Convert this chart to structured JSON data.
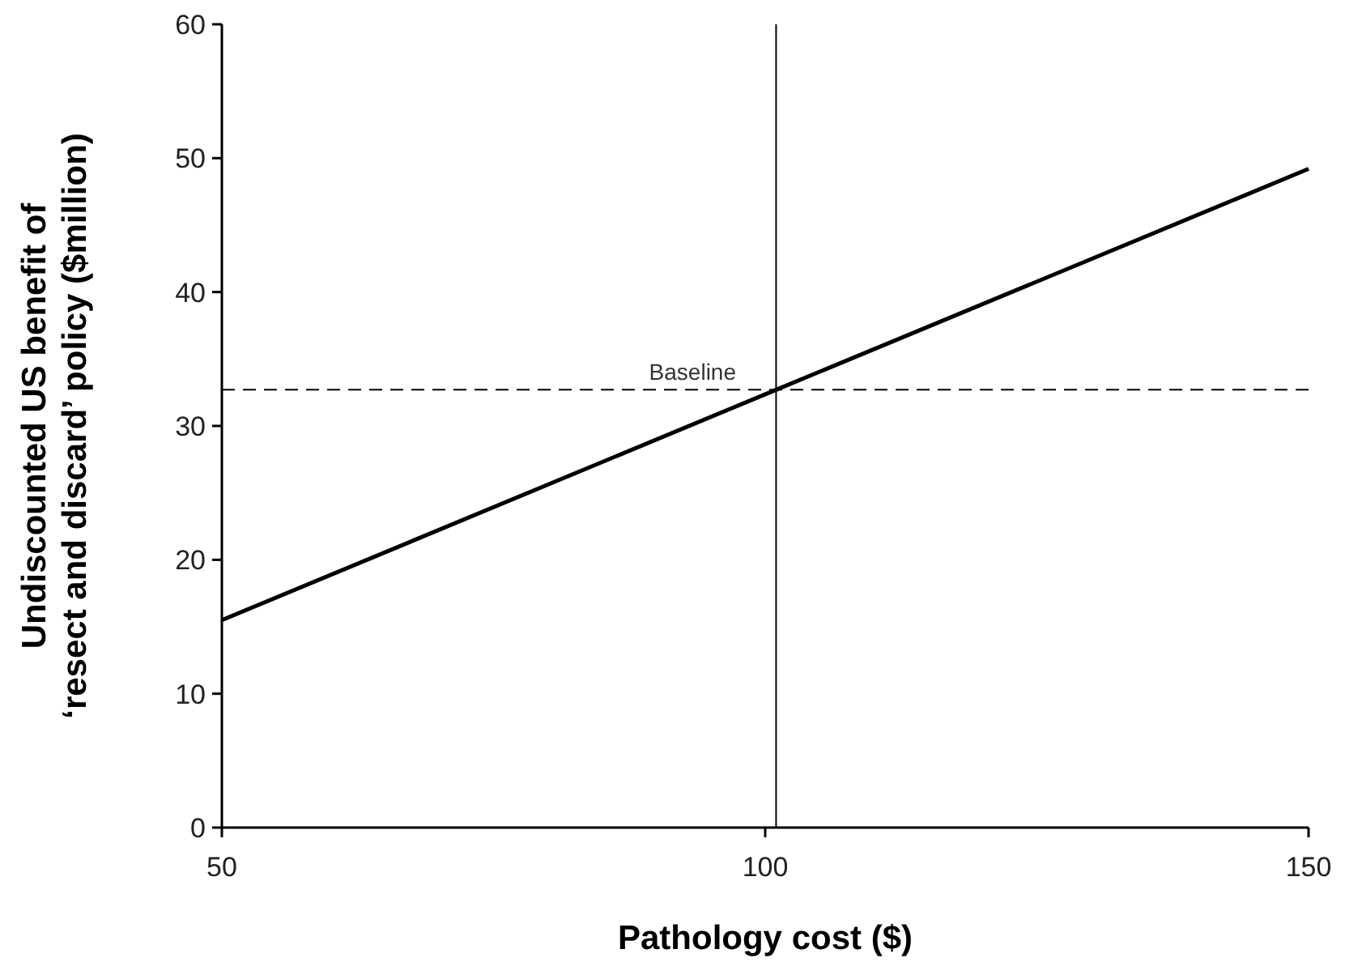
{
  "chart_data": {
    "type": "line",
    "xlabel": "Pathology cost ($)",
    "ylabel": "Undiscounted US benefit of\n‘resect and discard’ policy ($million)",
    "xlim": [
      50,
      150
    ],
    "xticks": [
      50,
      100,
      150
    ],
    "ylim": [
      0,
      60
    ],
    "yticks": [
      0,
      10,
      20,
      30,
      40,
      50,
      60
    ],
    "grid": false,
    "marker": "none",
    "series": [
      {
        "color": "#000000",
        "x": [
          50,
          101,
          150
        ],
        "values": [
          15.5,
          32.7,
          49.2
        ],
        "line_style": "solid"
      }
    ],
    "ref_lines": [
      {
        "axis": "y",
        "value": 32.7,
        "label": "Baseline",
        "line_style": "dashed",
        "color": "#000000"
      },
      {
        "axis": "x",
        "value": 101,
        "label": null,
        "line_style": "solid",
        "color": "#000000"
      }
    ]
  }
}
